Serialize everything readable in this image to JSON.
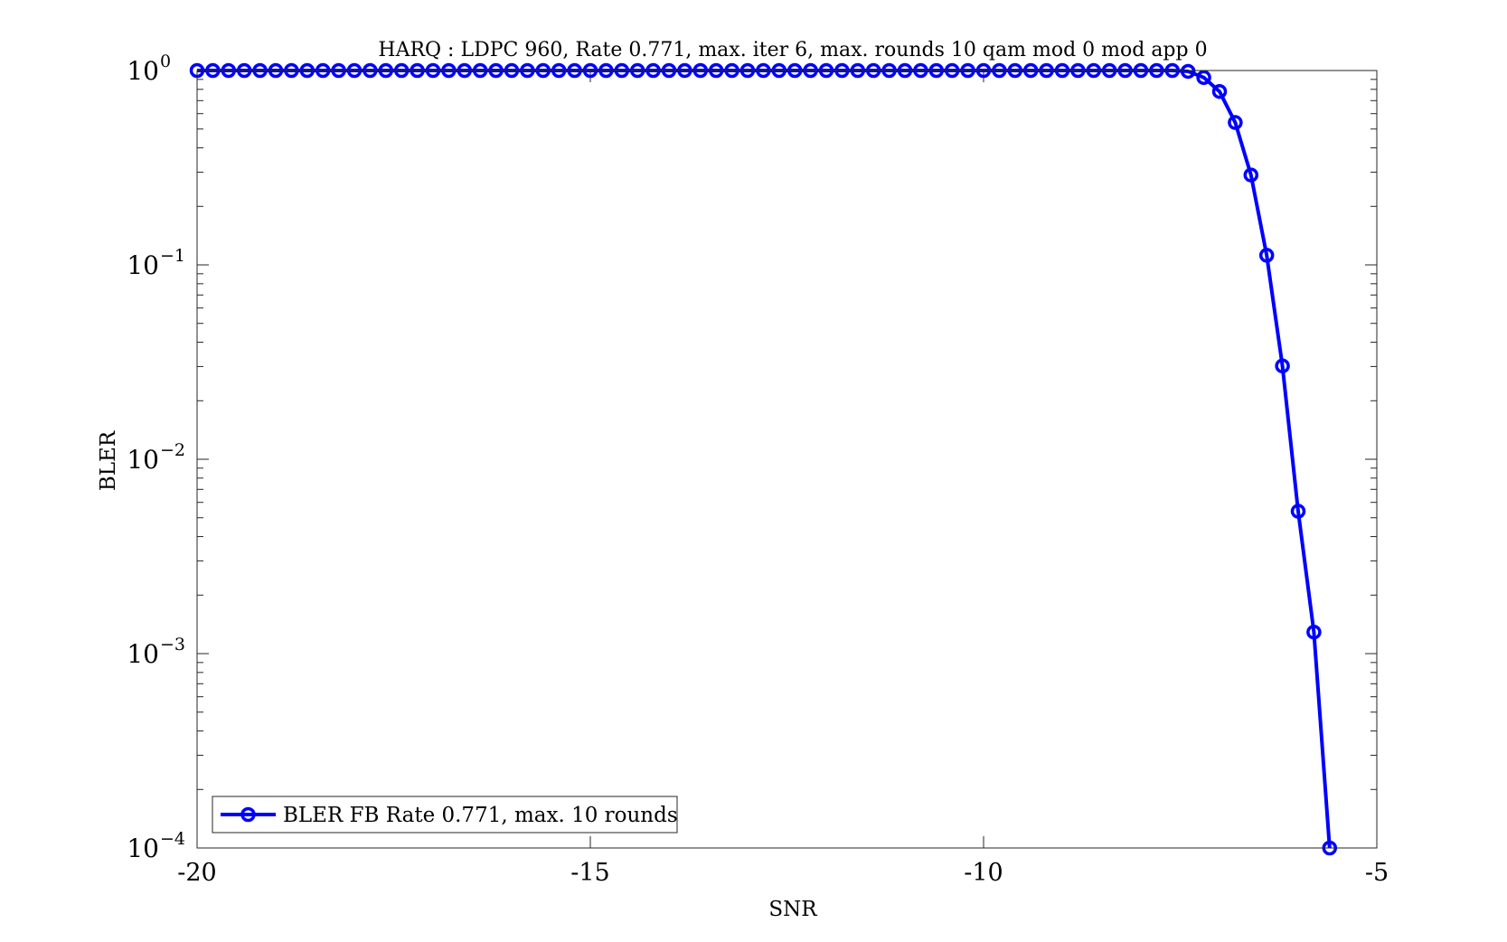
{
  "chart_data": {
    "type": "line",
    "title": "HARQ : LDPC 960, Rate 0.771, max. iter 6, max. rounds 10 qam mod 0 mod app 0",
    "xlabel": "SNR",
    "ylabel": "BLER",
    "xlim": [
      -20,
      -5
    ],
    "ylim": [
      0.0001,
      1
    ],
    "yscale": "log",
    "grid": false,
    "legend_position": "bottom-left",
    "x_ticks": [
      {
        "value": -20,
        "label": "-20"
      },
      {
        "value": -15,
        "label": "-15"
      },
      {
        "value": -10,
        "label": "-10"
      },
      {
        "value": -5,
        "label": "-5"
      }
    ],
    "y_ticks": [
      {
        "value": 1,
        "base": "10",
        "exp": "0"
      },
      {
        "value": 0.1,
        "base": "10",
        "exp": "−1"
      },
      {
        "value": 0.01,
        "base": "10",
        "exp": "−2"
      },
      {
        "value": 0.001,
        "base": "10",
        "exp": "−3"
      },
      {
        "value": 0.0001,
        "base": "10",
        "exp": "−4"
      }
    ],
    "series": [
      {
        "name": "BLER FB Rate 0.771, max. 10 rounds",
        "color": "#0000ff",
        "marker": "circle",
        "x": [
          -20.0,
          -19.8,
          -19.6,
          -19.4,
          -19.2,
          -19.0,
          -18.8,
          -18.6,
          -18.4,
          -18.2,
          -18.0,
          -17.8,
          -17.6,
          -17.4,
          -17.2,
          -17.0,
          -16.8,
          -16.6,
          -16.4,
          -16.2,
          -16.0,
          -15.8,
          -15.6,
          -15.4,
          -15.2,
          -15.0,
          -14.8,
          -14.6,
          -14.4,
          -14.2,
          -14.0,
          -13.8,
          -13.6,
          -13.4,
          -13.2,
          -13.0,
          -12.8,
          -12.6,
          -12.4,
          -12.2,
          -12.0,
          -11.8,
          -11.6,
          -11.4,
          -11.2,
          -11.0,
          -10.8,
          -10.6,
          -10.4,
          -10.2,
          -10.0,
          -9.8,
          -9.6,
          -9.4,
          -9.2,
          -9.0,
          -8.8,
          -8.6,
          -8.4,
          -8.2,
          -8.0,
          -7.8,
          -7.6,
          -7.4,
          -7.2,
          -7.0,
          -6.8,
          -6.6,
          -6.4,
          -6.2,
          -6.0,
          -5.8,
          -5.6
        ],
        "y": [
          1,
          1,
          1,
          1,
          1,
          1,
          1,
          1,
          1,
          1,
          1,
          1,
          1,
          1,
          1,
          1,
          1,
          1,
          1,
          1,
          1,
          1,
          1,
          1,
          1,
          1,
          1,
          1,
          1,
          1,
          1,
          1,
          1,
          1,
          1,
          1,
          1,
          1,
          1,
          1,
          1,
          1,
          1,
          1,
          1,
          1,
          1,
          1,
          1,
          1,
          1,
          1,
          1,
          1,
          1,
          1,
          1,
          1,
          1,
          1,
          1,
          1,
          1,
          0.99,
          0.92,
          0.78,
          0.54,
          0.29,
          0.112,
          0.0302,
          0.0054,
          0.00129,
          0.0001
        ]
      }
    ]
  }
}
